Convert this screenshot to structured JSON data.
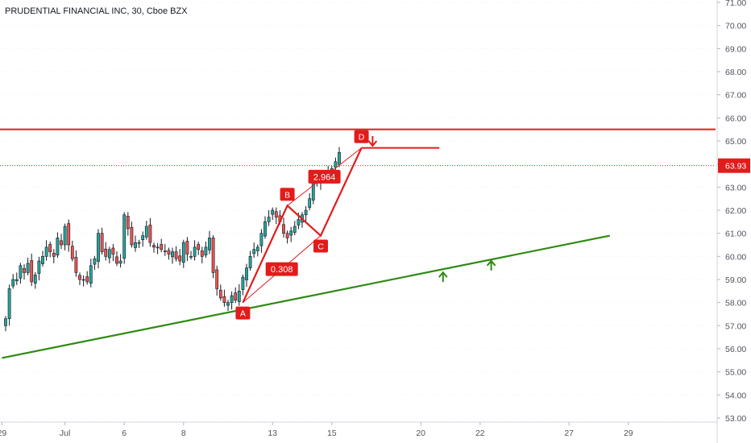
{
  "title": "PRUDENTIAL FINANCIAL INC, 30, Cboe BZX",
  "colors": {
    "bull": "#26a69a",
    "bear": "#ef5350",
    "wick": "#131722",
    "pattern": "#e31b1b",
    "support": "#2d8a12",
    "axis_text": "#50535e",
    "grid": "#e0e3eb",
    "price_tag_bg": "#e31b1b"
  },
  "chart_data": {
    "type": "candlestick",
    "title": "PRUDENTIAL FINANCIAL INC, 30, Cboe BZX",
    "y_axis": {
      "side": "right",
      "min": 53.0,
      "max": 71.0,
      "ticks": [
        "71.00",
        "70.00",
        "69.00",
        "68.00",
        "67.00",
        "66.00",
        "65.00",
        "64.00",
        "63.00",
        "62.00",
        "61.00",
        "60.00",
        "59.00",
        "58.00",
        "57.00",
        "56.00",
        "55.00",
        "54.00",
        "53.00"
      ],
      "tick_values": [
        71,
        70,
        69,
        68,
        67,
        66,
        65,
        64,
        63,
        62,
        61,
        60,
        59,
        58,
        57,
        56,
        55,
        54,
        53
      ]
    },
    "x_axis": {
      "ticks": [
        {
          "label": "29",
          "bar": -1
        },
        {
          "label": "Jul",
          "bar": 16
        },
        {
          "label": "6",
          "bar": 32
        },
        {
          "label": "8",
          "bar": 48
        },
        {
          "label": "13",
          "bar": 72
        },
        {
          "label": "15",
          "bar": 88
        },
        {
          "label": "20",
          "bar": 112
        },
        {
          "label": "22",
          "bar": 128
        },
        {
          "label": "27",
          "bar": 152
        },
        {
          "label": "29",
          "bar": 168
        }
      ]
    },
    "last_price": {
      "value": 63.93,
      "label": "63.93"
    },
    "closes": [
      57.3,
      58.6,
      59.0,
      59.0,
      59.6,
      59.3,
      59.7,
      58.9,
      59.2,
      59.8,
      60.0,
      60.4,
      60.2,
      60.0,
      60.8,
      60.5,
      61.3,
      60.5,
      59.9,
      59.3,
      59.0,
      59.0,
      58.9,
      59.6,
      59.9,
      61.0,
      60.2,
      60.0,
      60.3,
      60.1,
      59.7,
      59.8,
      61.8,
      61.2,
      60.5,
      60.6,
      60.6,
      60.9,
      61.3,
      60.6,
      60.4,
      60.4,
      60.3,
      60.2,
      60.1,
      60.2,
      59.9,
      59.8,
      60.6,
      60.1,
      60.0,
      60.4,
      60.3,
      60.0,
      60.4,
      60.8,
      59.3,
      58.6,
      58.2,
      58.0,
      58.0,
      58.3,
      58.1,
      58.5,
      59.1,
      59.5,
      60.0,
      60.3,
      60.4,
      61.0,
      61.5,
      61.7,
      62.0,
      61.7,
      61.5,
      61.0,
      60.8,
      61.1,
      61.3,
      61.6,
      61.8,
      62.0,
      62.5,
      63.2,
      63.3,
      63.3,
      63.5,
      63.6,
      63.8,
      64.1,
      64.5
    ],
    "patterns": {
      "harmonic_points": [
        {
          "label": "A",
          "bar": 64,
          "price": 58.0
        },
        {
          "label": "B",
          "bar": 76,
          "price": 62.2
        },
        {
          "label": "C",
          "bar": 85,
          "price": 60.9
        },
        {
          "label": "D",
          "bar": 96,
          "price": 64.7
        }
      ],
      "ratio_labels": [
        "0.308",
        "2.964"
      ],
      "resistance_level": 65.5,
      "target_line": {
        "from_bar": 96,
        "to_bar": 117,
        "price": 64.7
      },
      "support_trendline": {
        "from": {
          "bar": -1,
          "price": 55.6
        },
        "to": {
          "bar": 163,
          "price": 60.9
        }
      },
      "arrows": [
        {
          "direction": "down",
          "bar": 99,
          "price": 65.0
        },
        {
          "direction": "up",
          "bar": 118,
          "price": 59.1
        },
        {
          "direction": "up",
          "bar": 131,
          "price": 59.6
        }
      ]
    }
  }
}
